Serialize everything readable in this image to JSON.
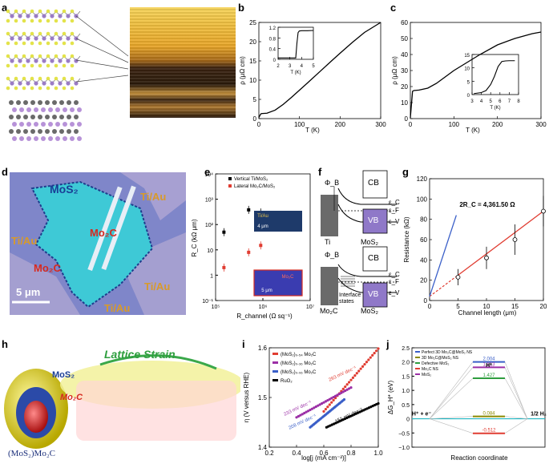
{
  "panel_labels": {
    "a": "a",
    "b": "b",
    "c": "c",
    "d": "d",
    "e": "e",
    "f": "f",
    "g": "g",
    "h": "h",
    "i": "i",
    "j": "j"
  },
  "colors": {
    "axis": "#000000",
    "red": "#e03c31",
    "blue": "#3a5fc8",
    "purple": "#9b2fa6",
    "green": "#2e9e3e",
    "olive": "#8a8a00",
    "teal": "#21b6c2",
    "device_bg": "#7f86c9",
    "mos2_cyan": "#3ec9d6",
    "mo2c_gold": "#d89a2a"
  },
  "chart_data": [
    {
      "id": "b",
      "type": "line",
      "ylabel": "ρ (μΩ cm)",
      "xlabel": "T (K)",
      "xlim": [
        0,
        300
      ],
      "ylim": [
        0,
        25
      ],
      "xticks": [
        "0",
        "100",
        "200",
        "300"
      ],
      "yticks": [
        "0",
        "5",
        "10",
        "15",
        "20",
        "25"
      ],
      "x": [
        0,
        4,
        6,
        20,
        40,
        60,
        80,
        100,
        120,
        150,
        180,
        200,
        230,
        260,
        300
      ],
      "y": [
        0.3,
        1.1,
        1.3,
        1.4,
        2.2,
        3.7,
        5.5,
        7.4,
        9.3,
        12.2,
        15.1,
        17.0,
        19.8,
        22.4,
        25.0
      ],
      "inset": {
        "xlabel": "T (K)",
        "ylabel": "",
        "xlim": [
          2,
          5
        ],
        "ylim": [
          0,
          1.2
        ],
        "xticks": [
          "2",
          "3",
          "4",
          "5"
        ],
        "yticks": [
          "0",
          "0.4",
          "0.8",
          "1.2"
        ],
        "x": [
          2,
          3.0,
          3.5,
          3.6,
          3.7,
          3.8,
          4.0,
          4.5,
          5.0
        ],
        "y": [
          0.05,
          0.05,
          0.05,
          0.6,
          1.0,
          1.06,
          1.07,
          1.07,
          1.08
        ]
      }
    },
    {
      "id": "c",
      "type": "line",
      "ylabel": "ρ (μΩ cm)",
      "xlabel": "T (K)",
      "xlim": [
        0,
        300
      ],
      "ylim": [
        0,
        60
      ],
      "xticks": [
        "0",
        "100",
        "200",
        "300"
      ],
      "yticks": [
        "0",
        "10",
        "20",
        "30",
        "40",
        "50",
        "60"
      ],
      "x": [
        0,
        5,
        8,
        20,
        40,
        60,
        80,
        100,
        130,
        160,
        200,
        240,
        280,
        300
      ],
      "y": [
        0.5,
        17,
        17.5,
        17.8,
        19,
        22,
        26,
        30,
        35,
        40,
        46,
        50,
        53,
        54
      ],
      "inset": {
        "xlabel": "T (K)",
        "ylabel": "",
        "xlim": [
          3,
          8
        ],
        "ylim": [
          0,
          20
        ],
        "xticks": [
          "3",
          "4",
          "5",
          "6",
          "7",
          "8"
        ],
        "yticks": [
          "0",
          "5",
          "10",
          "15"
        ],
        "x": [
          3.2,
          4.0,
          4.5,
          5.0,
          5.4,
          5.8,
          6.2,
          6.6,
          7.0,
          7.6
        ],
        "y": [
          0.5,
          1,
          2,
          5,
          9,
          14,
          16.5,
          16.8,
          16.9,
          16.9
        ]
      }
    },
    {
      "id": "e",
      "type": "scatter",
      "ylabel": "R_C (kΩ μm)",
      "xlabel": "R_channel (Ω sq⁻¹)",
      "ylog": true,
      "xlog": true,
      "ylim": [
        0.1,
        10000
      ],
      "xlim": [
        100000,
        10000000
      ],
      "xticks": [
        "10⁵",
        "10⁶",
        "10⁷"
      ],
      "yticks": [
        "10⁻¹",
        "1",
        "10",
        "10²",
        "10³",
        "10⁴"
      ],
      "series": [
        {
          "name": "Vertical Ti/MoS₂",
          "color": "#000000",
          "x": [
            150000,
            500000,
            900000,
            1600000
          ],
          "y": [
            50,
            380,
            300,
            130
          ]
        },
        {
          "name": "Lateral Mo₂C/MoS₂",
          "color": "#e03c31",
          "x": [
            150000,
            500000,
            900000
          ],
          "y": [
            2,
            8,
            15
          ]
        }
      ],
      "inset_top_label": "Ti/Au",
      "inset_top_scale": "4 μm",
      "inset_bot_label": "Mo₂C",
      "inset_bot_scale": "5 μm"
    },
    {
      "id": "g",
      "type": "line",
      "ylabel": "Resistance (kΩ)",
      "xlabel": "Channel length (μm)",
      "xlim": [
        0,
        20
      ],
      "ylim": [
        0,
        120
      ],
      "xticks": [
        "0",
        "5",
        "10",
        "15",
        "20"
      ],
      "yticks": [
        "0",
        "20",
        "40",
        "60",
        "80",
        "100",
        "120"
      ],
      "series": [
        {
          "name": "fit",
          "color": "#e03c31",
          "x": [
            0,
            20
          ],
          "y": [
            4,
            88
          ]
        },
        {
          "name": "blue",
          "color": "#3a5fc8",
          "x": [
            0,
            4.7
          ],
          "y": [
            4,
            84
          ]
        }
      ],
      "points": {
        "x": [
          5,
          10,
          15,
          20
        ],
        "y": [
          23,
          42,
          60,
          88
        ],
        "err": [
          8,
          11,
          15,
          15
        ]
      },
      "annotation": "2R_C = 4,361.50 Ω"
    },
    {
      "id": "i",
      "type": "scatter",
      "ylabel": "η (V versus RHE)",
      "xlabel": "log[j (mA cm⁻²)]",
      "xlim": [
        0.2,
        1.0
      ],
      "ylim": [
        1.35,
        1.6
      ],
      "xticks": [
        "0.2",
        "0.4",
        "0.6",
        "0.8",
        "1.0"
      ],
      "yticks": [
        "1.4",
        "1.5",
        "1.6"
      ],
      "series": [
        {
          "name": "(MoS₂)₀.₅₄ Mo₂C",
          "color": "#e03c31",
          "x": [
            0.6,
            1.0
          ],
          "y": [
            1.44,
            1.598
          ],
          "tafel": "293 mV dec⁻¹"
        },
        {
          "name": "(MoS₂)₀.₃₆ Mo₂C",
          "color": "#9b2fa6",
          "x": [
            0.4,
            0.8
          ],
          "y": [
            1.425,
            1.5
          ],
          "tafel": "233 mV dec⁻¹"
        },
        {
          "name": "(MoS₂)₀.₀₆ Mo₂C",
          "color": "#3a5fc8",
          "x": [
            0.5,
            0.75
          ],
          "y": [
            1.4,
            1.47
          ],
          "tafel": "208 mV dec⁻¹"
        },
        {
          "name": "RuO₂",
          "color": "#000000",
          "x": [
            0.62,
            1.0
          ],
          "y": [
            1.4,
            1.46
          ],
          "tafel": "151 mV dec⁻¹"
        }
      ]
    },
    {
      "id": "j",
      "type": "line",
      "ylabel": "ΔG_H* (eV)",
      "xlabel": "Reaction coordinate",
      "ylim": [
        -1.0,
        2.5
      ],
      "yticks": [
        "−1.0",
        "−0.5",
        "0",
        "0.5",
        "1.0",
        "1.5",
        "2.0",
        "2.5"
      ],
      "x_labels": [
        "H⁺ + e⁻",
        "H*",
        "1/2 H₂"
      ],
      "series": [
        {
          "name": "Perfect 3D Mo₂C@MoS₂ NS",
          "color": "#3a5fc8",
          "value": 2.004,
          "label": "2.004"
        },
        {
          "name": "3D Mo₂C@MoS₂ NS",
          "color": "#8a8a00",
          "value": 0.084,
          "label": "0.084"
        },
        {
          "name": "Defective MoS₂",
          "color": "#2e9e3e",
          "value": 1.427,
          "label": "1.427"
        },
        {
          "name": "Mo₂C NS",
          "color": "#e03c31",
          "value": -0.512,
          "label": "-0.512"
        },
        {
          "name": "MoS₂",
          "color": "#9b2fa6",
          "value": 1.813,
          "label": "1.813"
        }
      ]
    }
  ],
  "panel_d": {
    "mos2": "MoS₂",
    "mo2c_left": "Mo₂C",
    "mo2c_bottom": "Mo₂C",
    "tiau_tr": "Ti/Au",
    "tiau_l": "Ti/Au",
    "tiau_br": "Ti/Au",
    "tiau_b": "Ti/Au",
    "scale": "5 μm"
  },
  "panel_f": {
    "phi_b": "Φ_B",
    "cb": "CB",
    "vb": "VB",
    "ec": "ε_C",
    "ef": "ε_F",
    "ev": "ε_V",
    "ti": "Ti",
    "mos2": "MoS₂",
    "mo2c": "Mo₂C",
    "interface": "Interface states"
  },
  "panel_h": {
    "lattice": "Lattice Strain",
    "mos2": "MoS₂",
    "mo2c": "Mo₂C",
    "caption": "(MoS₂)Mo₂C"
  }
}
